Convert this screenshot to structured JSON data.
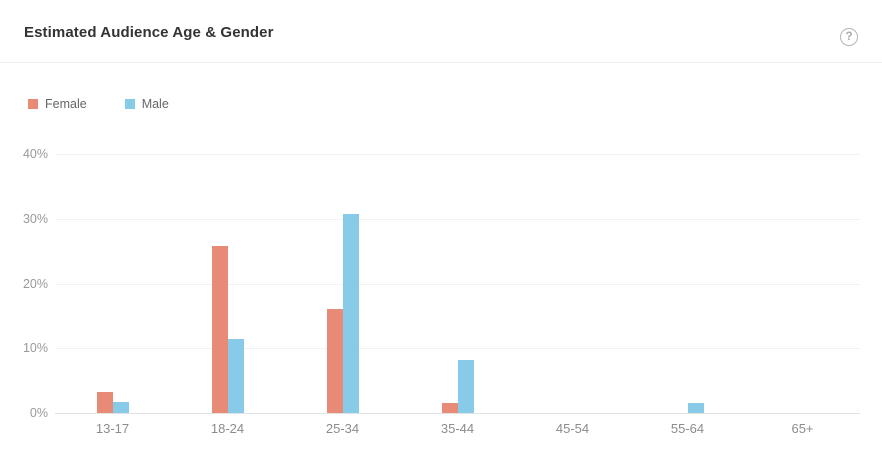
{
  "header": {
    "title": "Estimated Audience Age & Gender",
    "help_icon": "?"
  },
  "chart_data": {
    "type": "bar",
    "title": "Estimated Audience Age & Gender",
    "categories": [
      "13-17",
      "18-24",
      "25-34",
      "35-44",
      "45-54",
      "55-64",
      "65+"
    ],
    "series": [
      {
        "name": "Female",
        "color": "#E88B76",
        "values": [
          3.3,
          25.8,
          16.1,
          1.6,
          0,
          0,
          0
        ]
      },
      {
        "name": "Male",
        "color": "#88CBE8",
        "values": [
          1.7,
          11.4,
          30.7,
          8.2,
          0,
          1.6,
          0
        ]
      }
    ],
    "xlabel": "",
    "ylabel": "",
    "yticks": [
      "0%",
      "10%",
      "20%",
      "30%",
      "40%"
    ],
    "ylim": [
      0,
      40
    ],
    "grid": true,
    "legend_position": "top-left",
    "unit": "%"
  }
}
